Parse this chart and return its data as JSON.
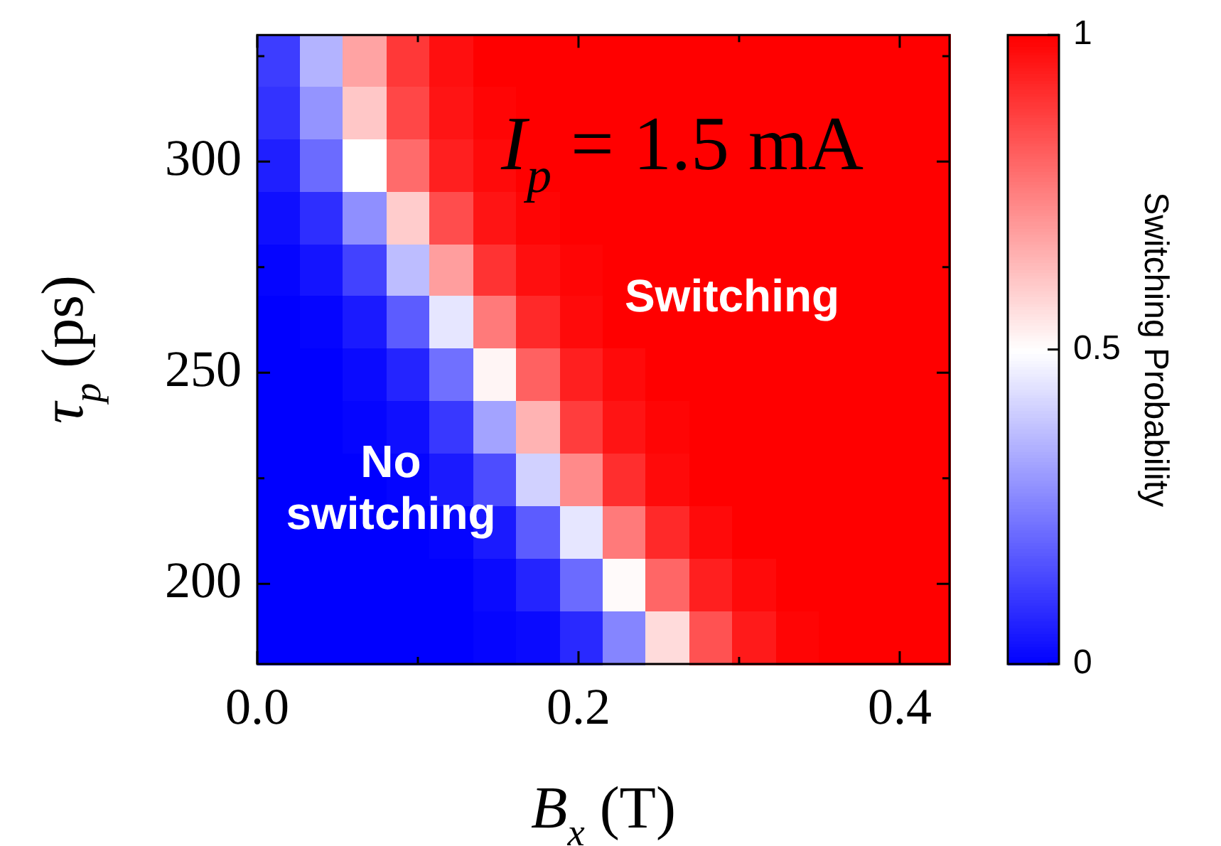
{
  "chart_data": {
    "type": "heatmap",
    "xlabel": "B$_{x}$ (T)",
    "ylabel": "τ$_{p}$ (ps)",
    "clabel": "Switching Probability",
    "annotations": [
      "I$_{p}$ = 1.5 mA",
      "Switching",
      "No\nswitching"
    ],
    "xlim": [
      0,
      0.431
    ],
    "ylim": [
      181,
      330
    ],
    "xticks": [
      {
        "value": 0,
        "label": "0.0"
      },
      {
        "value": 0.1,
        "label": null
      },
      0.2,
      {
        "value": 0.3,
        "label": null
      },
      0.4
    ],
    "yticks": [
      200,
      {
        "value": 225,
        "label": null
      },
      250,
      {
        "value": 275,
        "label": null
      },
      300,
      {
        "value": 325,
        "label": null
      }
    ],
    "clim": [
      0,
      1
    ],
    "cticks": [
      0,
      0.5,
      1
    ],
    "cells": [
      [
        0.12,
        0.35,
        0.68,
        0.89,
        0.97,
        1,
        1,
        1,
        1,
        1,
        1,
        1,
        1,
        1,
        1,
        1
      ],
      [
        0.1,
        0.29,
        0.61,
        0.86,
        0.96,
        0.99,
        1,
        1,
        1,
        1,
        1,
        1,
        1,
        1,
        1,
        1
      ],
      [
        0.06,
        0.21,
        0.5,
        0.79,
        0.94,
        0.98,
        1,
        1,
        1,
        1,
        1,
        1,
        1,
        1,
        1,
        1
      ],
      [
        0.03,
        0.09,
        0.28,
        0.6,
        0.85,
        0.96,
        0.99,
        1,
        1,
        1,
        1,
        1,
        1,
        1,
        1,
        1
      ],
      [
        0.01,
        0.04,
        0.13,
        0.37,
        0.69,
        0.9,
        0.97,
        0.99,
        1,
        1,
        1,
        1,
        1,
        1,
        1,
        1
      ],
      [
        0,
        0.01,
        0.05,
        0.18,
        0.45,
        0.76,
        0.92,
        0.98,
        1,
        1,
        1,
        1,
        1,
        1,
        1,
        1
      ],
      [
        0,
        0,
        0.02,
        0.07,
        0.22,
        0.52,
        0.81,
        0.94,
        0.98,
        1,
        1,
        1,
        1,
        1,
        1,
        1
      ],
      [
        0,
        0,
        0.01,
        0.03,
        0.11,
        0.32,
        0.65,
        0.88,
        0.96,
        0.99,
        1,
        1,
        1,
        1,
        1,
        1
      ],
      [
        0,
        0,
        0,
        0.01,
        0.05,
        0.15,
        0.41,
        0.73,
        0.91,
        0.98,
        1,
        1,
        1,
        1,
        1,
        1
      ],
      [
        0,
        0,
        0,
        0,
        0.01,
        0.05,
        0.18,
        0.45,
        0.76,
        0.92,
        0.98,
        1,
        1,
        1,
        1,
        1
      ],
      [
        0,
        0,
        0,
        0,
        0,
        0.02,
        0.07,
        0.21,
        0.51,
        0.8,
        0.94,
        0.98,
        1,
        1,
        1,
        1
      ],
      [
        0,
        0,
        0,
        0,
        0,
        0.01,
        0.02,
        0.08,
        0.26,
        0.57,
        0.84,
        0.95,
        0.99,
        1,
        1,
        1
      ]
    ]
  }
}
